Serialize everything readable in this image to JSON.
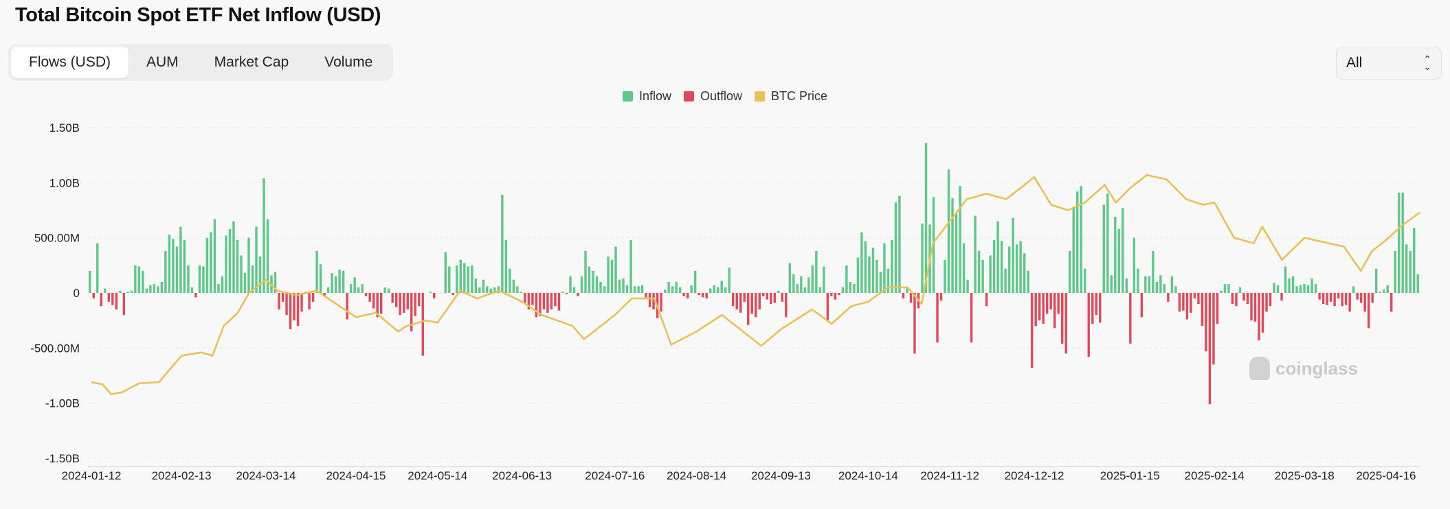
{
  "title": "Total Bitcoin Spot ETF Net Inflow (USD)",
  "tabs": [
    {
      "label": "Flows (USD)",
      "active": true
    },
    {
      "label": "AUM",
      "active": false
    },
    {
      "label": "Market Cap",
      "active": false
    },
    {
      "label": "Volume",
      "active": false
    }
  ],
  "range_select": {
    "value": "All"
  },
  "watermark": "coinglass",
  "colors": {
    "inflow": "#5ec889",
    "outflow": "#e1495b",
    "price": "#e8c158",
    "grid": "#e6e6e6",
    "axis_text": "#222222"
  },
  "chart_data": {
    "type": "bar",
    "title": "Total Bitcoin Spot ETF Net Inflow (USD)",
    "legend": [
      {
        "name": "Inflow",
        "color": "#5ec889"
      },
      {
        "name": "Outflow",
        "color": "#e1495b"
      },
      {
        "name": "BTC Price",
        "color": "#e8c158"
      }
    ],
    "legend_position": "top-center",
    "grid": "horizontal",
    "x_ticks": [
      "2024-01-12",
      "2024-02-13",
      "2024-03-14",
      "2024-04-15",
      "2024-05-14",
      "2024-06-13",
      "2024-07-16",
      "2024-08-14",
      "2024-09-13",
      "2024-10-14",
      "2024-11-12",
      "2024-12-12",
      "2025-01-15",
      "2025-02-14",
      "2025-03-18",
      "2025-04-16"
    ],
    "y_ticks": [
      {
        "value": 1.5,
        "label": "1.50B"
      },
      {
        "value": 1.0,
        "label": "1.00B"
      },
      {
        "value": 0.5,
        "label": "500.00M"
      },
      {
        "value": 0,
        "label": "0"
      },
      {
        "value": -0.5,
        "label": "-500.00M"
      },
      {
        "value": -1.0,
        "label": "-1.00B"
      },
      {
        "value": -1.5,
        "label": "-1.50B"
      }
    ],
    "ylim": [
      -1.5,
      1.5
    ],
    "y_unit": "USD billions",
    "flows_billion": [
      0.2,
      -0.05,
      0.45,
      -0.12,
      0.04,
      -0.08,
      -0.11,
      -0.15,
      0.02,
      -0.2,
      0.01,
      0.02,
      0.25,
      0.24,
      0.2,
      0.04,
      0.07,
      0.08,
      0.06,
      0.1,
      0.38,
      0.53,
      0.49,
      0.42,
      0.6,
      0.48,
      0.25,
      0.05,
      -0.04,
      0.25,
      0.24,
      0.5,
      0.55,
      0.67,
      0.08,
      0.15,
      0.52,
      0.58,
      0.65,
      0.48,
      0.34,
      0.18,
      0.5,
      0.25,
      0.6,
      0.33,
      1.04,
      0.67,
      0.16,
      0.19,
      -0.15,
      -0.08,
      -0.2,
      -0.33,
      -0.25,
      -0.3,
      -0.17,
      0.01,
      -0.15,
      -0.08,
      0.38,
      0.26,
      -0.03,
      0.05,
      0.18,
      0.15,
      0.21,
      0.2,
      -0.24,
      0.08,
      0.14,
      0.05,
      0.08,
      -0.03,
      -0.08,
      -0.14,
      -0.22,
      -0.19,
      0.05,
      0.04,
      -0.09,
      -0.13,
      -0.2,
      -0.18,
      -0.15,
      -0.35,
      -0.21,
      -0.12,
      -0.57,
      0,
      0.01,
      -0.05,
      0,
      0,
      0.37,
      0.24,
      -0.02,
      0.25,
      0.3,
      0.27,
      0.24,
      0.25,
      0.13,
      0.05,
      0.12,
      0.06,
      0.04,
      0.05,
      0.06,
      0.89,
      0.48,
      0.22,
      0.12,
      0.06,
      0.01,
      -0.09,
      -0.15,
      -0.11,
      -0.22,
      -0.21,
      -0.15,
      -0.18,
      -0.15,
      -0.12,
      -0.16,
      0.01,
      -0.01,
      0.15,
      0.05,
      -0.03,
      0.15,
      0.38,
      0.24,
      0.2,
      0.15,
      0.1,
      0.06,
      0.33,
      0.3,
      0.42,
      0.12,
      0.13,
      0.07,
      0.48,
      0.06,
      0.06,
      0.07,
      -0.04,
      -0.13,
      -0.15,
      -0.23,
      -0.17,
      0.03,
      0.1,
      0.06,
      0.1,
      0.05,
      -0.03,
      -0.05,
      0.07,
      0.2,
      -0.02,
      -0.04,
      -0.05,
      0.04,
      0.07,
      0.05,
      0.11,
      0.05,
      0.23,
      -0.12,
      -0.15,
      -0.18,
      -0.08,
      -0.29,
      -0.19,
      -0.22,
      -0.15,
      -0.03,
      -0.06,
      -0.1,
      -0.09,
      0.02,
      -0.08,
      -0.22,
      0.27,
      0.17,
      0.08,
      0.15,
      0.05,
      0.14,
      0.25,
      0.38,
      0.05,
      0.24,
      -0.26,
      -0.03,
      -0.06,
      -0.02,
      0.05,
      0.25,
      0.1,
      0.08,
      0.32,
      0.55,
      0.47,
      0.33,
      0.41,
      0.3,
      0.19,
      0.45,
      0.22,
      0.48,
      0.82,
      0.88,
      -0.05,
      0.04,
      -0.09,
      -0.55,
      -0.14,
      0.63,
      1.36,
      0.62,
      0.87,
      -0.45,
      -0.07,
      0.3,
      1.12,
      0.86,
      0.72,
      0.97,
      0.45,
      0.12,
      -0.45,
      0.7,
      0.38,
      0.3,
      -0.12,
      0.34,
      0.48,
      0.65,
      0.47,
      0.22,
      0.42,
      0.68,
      0.44,
      0.47,
      0.36,
      0.2,
      -0.68,
      -0.3,
      -0.25,
      -0.28,
      -0.19,
      -0.15,
      -0.32,
      -0.19,
      -0.46,
      -0.55,
      0.38,
      0.78,
      0.92,
      0.97,
      0.22,
      -0.58,
      -0.28,
      -0.2,
      -0.27,
      0.8,
      0.9,
      0.16,
      0.69,
      0.58,
      0.77,
      0.13,
      -0.46,
      0.5,
      0.22,
      -0.22,
      0.15,
      0.15,
      0.38,
      0.1,
      0.16,
      0.08,
      -0.08,
      0.15,
      0.06,
      -0.17,
      -0.16,
      -0.24,
      -0.18,
      -0.05,
      -0.1,
      -0.3,
      -0.53,
      -1.01,
      -0.65,
      -0.28,
      0.02,
      0.08,
      0.08,
      -0.1,
      -0.12,
      0.05,
      -0.07,
      -0.1,
      -0.25,
      -0.26,
      -0.43,
      -0.36,
      -0.17,
      -0.12,
      0.09,
      0.07,
      -0.07,
      0.24,
      0.13,
      0.15,
      0.06,
      0.07,
      0.08,
      0.07,
      0.13,
      0.08,
      -0.06,
      -0.1,
      -0.11,
      -0.08,
      -0.12,
      -0.05,
      -0.12,
      -0.11,
      -0.17,
      0.06,
      -0.06,
      -0.09,
      -0.17,
      -0.32,
      -0.09,
      0.22,
      0.01,
      0.03,
      0.07,
      -0.17,
      0.38,
      0.91,
      0.91,
      0.44,
      0.38,
      0.59,
      0.17
    ],
    "btc_price_points": [
      [
        "2024-01-12",
        -0.81
      ],
      [
        "2024-01-16",
        -0.83
      ],
      [
        "2024-01-19",
        -0.92
      ],
      [
        "2024-01-23",
        -0.9
      ],
      [
        "2024-01-29",
        -0.82
      ],
      [
        "2024-02-05",
        -0.81
      ],
      [
        "2024-02-08",
        -0.72
      ],
      [
        "2024-02-13",
        -0.57
      ],
      [
        "2024-02-20",
        -0.54
      ],
      [
        "2024-02-24",
        -0.57
      ],
      [
        "2024-02-28",
        -0.3
      ],
      [
        "2024-03-04",
        -0.18
      ],
      [
        "2024-03-08",
        0.0
      ],
      [
        "2024-03-14",
        0.12
      ],
      [
        "2024-03-18",
        0.02
      ],
      [
        "2024-03-25",
        -0.02
      ],
      [
        "2024-04-01",
        0.02
      ],
      [
        "2024-04-08",
        -0.1
      ],
      [
        "2024-04-15",
        -0.22
      ],
      [
        "2024-04-22",
        -0.18
      ],
      [
        "2024-04-30",
        -0.35
      ],
      [
        "2024-05-03",
        -0.3
      ],
      [
        "2024-05-10",
        -0.25
      ],
      [
        "2024-05-14",
        -0.27
      ],
      [
        "2024-05-22",
        0.02
      ],
      [
        "2024-05-28",
        -0.05
      ],
      [
        "2024-06-05",
        0.02
      ],
      [
        "2024-06-13",
        -0.08
      ],
      [
        "2024-06-20",
        -0.2
      ],
      [
        "2024-07-01",
        -0.3
      ],
      [
        "2024-07-05",
        -0.42
      ],
      [
        "2024-07-16",
        -0.2
      ],
      [
        "2024-07-22",
        -0.05
      ],
      [
        "2024-07-30",
        -0.05
      ],
      [
        "2024-08-05",
        -0.47
      ],
      [
        "2024-08-14",
        -0.35
      ],
      [
        "2024-08-23",
        -0.2
      ],
      [
        "2024-08-29",
        -0.32
      ],
      [
        "2024-09-06",
        -0.48
      ],
      [
        "2024-09-13",
        -0.33
      ],
      [
        "2024-09-24",
        -0.15
      ],
      [
        "2024-10-01",
        -0.28
      ],
      [
        "2024-10-08",
        -0.12
      ],
      [
        "2024-10-14",
        -0.08
      ],
      [
        "2024-10-21",
        0.05
      ],
      [
        "2024-10-28",
        0.05
      ],
      [
        "2024-11-02",
        -0.1
      ],
      [
        "2024-11-06",
        0.45
      ],
      [
        "2024-11-12",
        0.65
      ],
      [
        "2024-11-18",
        0.85
      ],
      [
        "2024-11-25",
        0.9
      ],
      [
        "2024-12-02",
        0.85
      ],
      [
        "2024-12-12",
        1.05
      ],
      [
        "2024-12-18",
        0.8
      ],
      [
        "2024-12-24",
        0.75
      ],
      [
        "2024-12-30",
        0.82
      ],
      [
        "2025-01-06",
        0.98
      ],
      [
        "2025-01-10",
        0.82
      ],
      [
        "2025-01-15",
        0.95
      ],
      [
        "2025-01-21",
        1.07
      ],
      [
        "2025-01-28",
        1.03
      ],
      [
        "2025-02-04",
        0.85
      ],
      [
        "2025-02-10",
        0.8
      ],
      [
        "2025-02-14",
        0.82
      ],
      [
        "2025-02-21",
        0.5
      ],
      [
        "2025-02-28",
        0.45
      ],
      [
        "2025-03-03",
        0.6
      ],
      [
        "2025-03-10",
        0.3
      ],
      [
        "2025-03-18",
        0.5
      ],
      [
        "2025-03-25",
        0.46
      ],
      [
        "2025-04-01",
        0.42
      ],
      [
        "2025-04-07",
        0.2
      ],
      [
        "2025-04-11",
        0.38
      ],
      [
        "2025-04-16",
        0.48
      ],
      [
        "2025-04-22",
        0.62
      ],
      [
        "2025-04-28",
        0.73
      ]
    ]
  }
}
